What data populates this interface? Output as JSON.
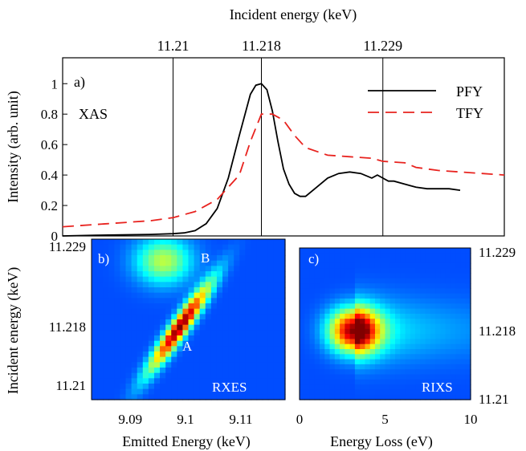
{
  "chart_data": [
    {
      "type": "line",
      "panel_label": "a)",
      "annotation": "XAS",
      "top_axis_label": "Incident energy (keV)",
      "top_ticks": [
        "11.21",
        "11.218",
        "11.229"
      ],
      "top_tick_values": [
        11.21,
        11.218,
        11.229
      ],
      "ylabel": "Intensity (arb. unit)",
      "y_ticks": [
        "0",
        "0.2",
        "0.4",
        "0.6",
        "0.8",
        "1"
      ],
      "ylim": [
        0,
        1.17
      ],
      "xlim": [
        11.2,
        11.24
      ],
      "grid": false,
      "legend_position": "top-right",
      "series": [
        {
          "name": "PFY",
          "color": "#000000",
          "style": "solid",
          "x": [
            11.2,
            11.203,
            11.206,
            11.208,
            11.21,
            11.211,
            11.212,
            11.213,
            11.214,
            11.215,
            11.216,
            11.217,
            11.2175,
            11.218,
            11.2185,
            11.219,
            11.2195,
            11.22,
            11.2205,
            11.221,
            11.2215,
            11.222,
            11.223,
            11.224,
            11.225,
            11.226,
            11.227,
            11.228,
            11.2285,
            11.229,
            11.2295,
            11.23,
            11.231,
            11.232,
            11.233,
            11.234,
            11.235,
            11.236
          ],
          "y": [
            0.0,
            0.005,
            0.008,
            0.01,
            0.015,
            0.02,
            0.035,
            0.08,
            0.18,
            0.38,
            0.66,
            0.93,
            0.99,
            1.0,
            0.96,
            0.82,
            0.62,
            0.44,
            0.34,
            0.28,
            0.26,
            0.26,
            0.32,
            0.38,
            0.41,
            0.42,
            0.41,
            0.38,
            0.4,
            0.38,
            0.36,
            0.36,
            0.34,
            0.32,
            0.31,
            0.31,
            0.31,
            0.3
          ]
        },
        {
          "name": "TFY",
          "color": "#e8231f",
          "style": "dashed",
          "x": [
            11.2,
            11.204,
            11.208,
            11.21,
            11.212,
            11.214,
            11.216,
            11.217,
            11.218,
            11.219,
            11.22,
            11.221,
            11.222,
            11.224,
            11.226,
            11.228,
            11.229,
            11.231,
            11.232,
            11.234,
            11.236,
            11.238,
            11.24
          ],
          "y": [
            0.06,
            0.08,
            0.1,
            0.12,
            0.16,
            0.24,
            0.4,
            0.62,
            0.8,
            0.8,
            0.76,
            0.66,
            0.58,
            0.53,
            0.52,
            0.51,
            0.49,
            0.48,
            0.45,
            0.43,
            0.42,
            0.41,
            0.4
          ]
        }
      ]
    },
    {
      "type": "heatmap",
      "panel_label": "b)",
      "annotation": "RXES",
      "xlabel": "Emitted Energy (keV)",
      "ylabel": "Incident energy (keV)",
      "x_ticks": [
        "9.09",
        "9.1",
        "9.11"
      ],
      "x_tick_values": [
        9.09,
        9.1,
        9.11
      ],
      "y_ticks": [
        "11.229",
        "11.218",
        "11.21"
      ],
      "y_tick_values": [
        11.229,
        11.218,
        11.21
      ],
      "xlim": [
        9.083,
        9.118
      ],
      "ylim": [
        11.208,
        11.23
      ],
      "features": [
        {
          "label": "A",
          "x": 9.099,
          "y": 11.218,
          "intensity": 1.0
        },
        {
          "label": "B",
          "x": 9.096,
          "y": 11.227,
          "intensity": 0.45
        }
      ]
    },
    {
      "type": "heatmap",
      "panel_label": "c)",
      "annotation": "RIXS",
      "xlabel": "Energy Loss (eV)",
      "x_ticks": [
        "0",
        "5",
        "10"
      ],
      "x_tick_values": [
        0,
        5,
        10
      ],
      "y_ticks": [
        "11.229",
        "11.218",
        "11.21"
      ],
      "y_tick_values": [
        11.229,
        11.218,
        11.21
      ],
      "xlim": [
        0,
        10
      ],
      "ylim": [
        11.208,
        11.23
      ],
      "features": [
        {
          "x": 3.2,
          "y": 11.218,
          "intensity": 1.0
        }
      ]
    }
  ]
}
